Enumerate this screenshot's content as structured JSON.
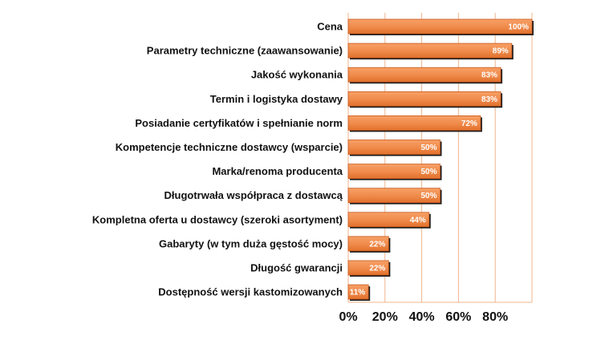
{
  "chart_data": {
    "type": "bar",
    "orientation": "horizontal",
    "categories": [
      "Cena",
      "Parametry techniczne (zaawansowanie)",
      "Jakość wykonania",
      "Termin i logistyka dostawy",
      "Posiadanie certyfikatów i spełnianie norm",
      "Kompetencje techniczne dostawcy (wsparcie)",
      "Marka/renoma producenta",
      "Długotrwała współpraca z dostawcą",
      "Kompletna oferta u dostawcy (szeroki asortyment)",
      "Gabaryty (w tym duża gęstość mocy)",
      "Długość gwarancji",
      "Dostępność wersji kastomizowanych"
    ],
    "values": [
      100,
      89,
      83,
      83,
      72,
      50,
      50,
      50,
      44,
      22,
      22,
      11
    ],
    "data_labels": [
      "100%",
      "89%",
      "83%",
      "83%",
      "72%",
      "50%",
      "50%",
      "50%",
      "44%",
      "22%",
      "22%",
      "11%"
    ],
    "x_ticks": [
      0,
      20,
      40,
      60,
      80
    ],
    "x_tick_labels": [
      "0%",
      "20%",
      "40%",
      "60%",
      "80%"
    ],
    "xlim": [
      0,
      100
    ],
    "grid": "vertical",
    "legend": "none",
    "colors": {
      "bar_light": "#f7a067",
      "bar_dark": "#e0702c",
      "bar_edge": "#c9591c",
      "bar_shadow": "#1a1a1a",
      "grid": "#f0b48c",
      "plot_background": "#ffffff",
      "page_background": "#ffffff"
    }
  }
}
